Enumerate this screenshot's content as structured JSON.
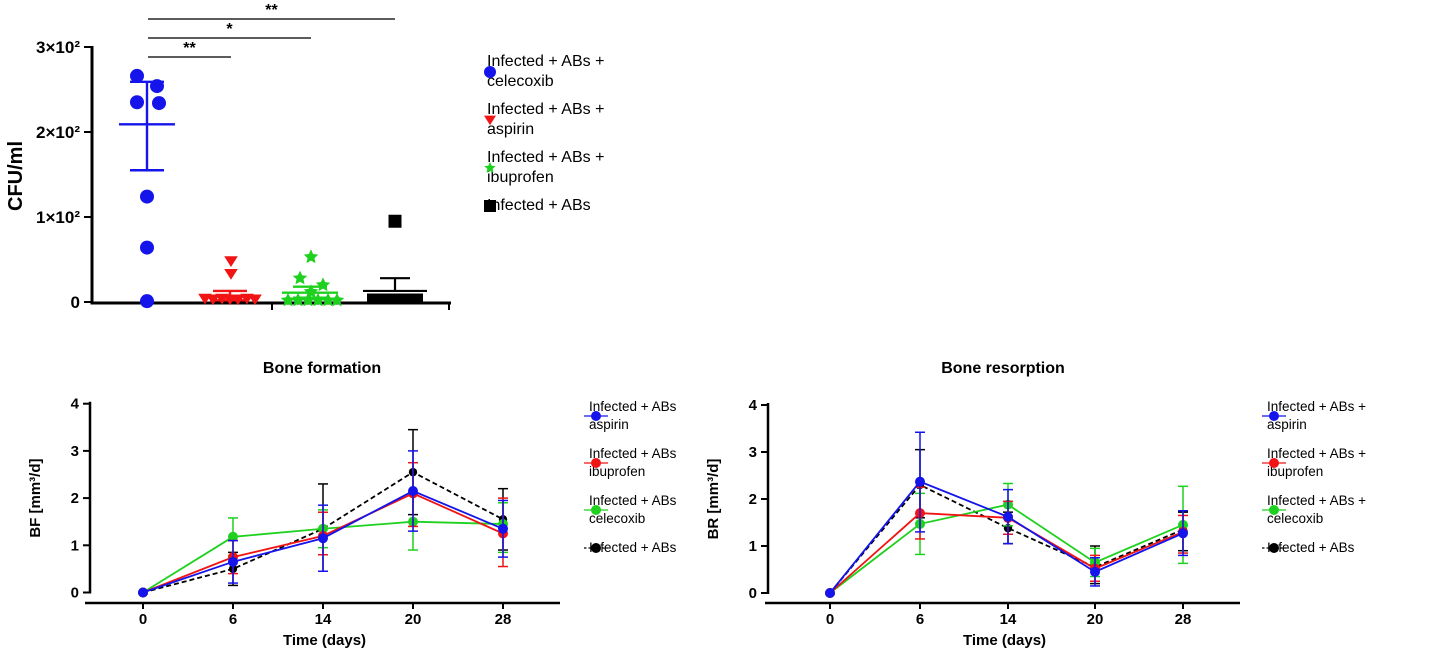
{
  "figure": {
    "background": "#ffffff"
  },
  "colors": {
    "blue": "#1414eb",
    "red": "#f01414",
    "green": "#1fd11f",
    "black": "#000000",
    "sig_line": "#454545"
  },
  "chart_data": [
    {
      "id": "cfu",
      "type": "scatter",
      "ylabel": "CFU/ml",
      "ylim": [
        0,
        300
      ],
      "yticks": [
        0,
        100,
        200,
        300
      ],
      "ytick_labels": [
        "0",
        "1×10²",
        "2×10²",
        "3×10²"
      ],
      "groups": [
        {
          "name": "Infected + ABs + celecoxib",
          "legend_lines": [
            "Infected + ABs +",
            "celecoxib"
          ],
          "color": "#1414eb",
          "marker": "circle",
          "style": "scatter",
          "points": [
            [
              -11,
              266
            ],
            [
              9,
              254
            ],
            [
              -11,
              235
            ],
            [
              11,
              234
            ],
            [
              -1,
              124
            ],
            [
              -1,
              64
            ],
            [
              -1,
              1
            ]
          ],
          "mean": 209,
          "err_low": 155,
          "err_high": 259
        },
        {
          "name": "Infected + ABs + aspirin",
          "legend_lines": [
            "Infected + ABs +",
            "aspirin"
          ],
          "color": "#f01414",
          "marker": "triangle-down",
          "style": "scatter",
          "points": [
            [
              0,
              48
            ],
            [
              0,
              33
            ],
            [
              -26,
              4
            ],
            [
              -18,
              3
            ],
            [
              -9,
              4
            ],
            [
              -1,
              3
            ],
            [
              7,
              3
            ],
            [
              16,
              4
            ],
            [
              24,
              3
            ]
          ],
          "mean": 7,
          "err_low": 2,
          "err_high": 13
        },
        {
          "name": "Infected + ABs + ibuprofen",
          "legend_lines": [
            "Infected + ABs +",
            "ibuprofen"
          ],
          "color": "#1fd11f",
          "marker": "star",
          "style": "scatter",
          "points": [
            [
              0,
              53
            ],
            [
              -11,
              28
            ],
            [
              12,
              20
            ],
            [
              0,
              12
            ],
            [
              -23,
              2
            ],
            [
              -13,
              2
            ],
            [
              -3,
              2
            ],
            [
              7,
              2
            ],
            [
              17,
              2
            ],
            [
              26,
              2
            ]
          ],
          "mean": 11,
          "err_low": 5,
          "err_high": 18
        },
        {
          "name": "Infected + ABs",
          "legend_lines": [
            "Infected + ABs"
          ],
          "color": "#000000",
          "marker": "square",
          "style": "bar",
          "points": [
            [
              0,
              95
            ]
          ],
          "bar_top": 10,
          "mean": 13,
          "err_high": 28
        }
      ],
      "significance": [
        {
          "label": "**",
          "from": 0,
          "to": 3
        },
        {
          "label": "*",
          "from": 0,
          "to": 2
        },
        {
          "label": "**",
          "from": 0,
          "to": 1
        }
      ]
    },
    {
      "id": "bf",
      "type": "line",
      "title": "Bone formation",
      "ylabel": "BF [mm³/d]",
      "xlabel": "Time (days)",
      "x_labels": [
        "0",
        "6",
        "14",
        "20",
        "28"
      ],
      "ylim": [
        0,
        4
      ],
      "yticks": [
        0,
        1,
        2,
        3,
        4
      ],
      "grid": false,
      "legend_position": "right",
      "series": [
        {
          "name": "Infected + ABs aspirin",
          "legend_lines": [
            "Infected + ABs",
            "aspirin"
          ],
          "color": "#1414eb",
          "dash": false,
          "values": [
            0,
            0.65,
            1.15,
            2.15,
            1.35
          ],
          "err_low": [
            0,
            0.2,
            0.45,
            1.3,
            0.75
          ],
          "err_high": [
            0,
            1.1,
            1.85,
            3.0,
            1.95
          ]
        },
        {
          "name": "Infected + ABs ibuprofen",
          "legend_lines": [
            "Infected + ABs",
            "ibuprofen"
          ],
          "color": "#f01414",
          "dash": false,
          "values": [
            0,
            0.75,
            1.2,
            2.1,
            1.25
          ],
          "err_low": [
            0,
            0.4,
            0.8,
            1.4,
            0.55
          ],
          "err_high": [
            0,
            1.1,
            1.7,
            2.75,
            2.0
          ]
        },
        {
          "name": "Infected + ABs celecoxib",
          "legend_lines": [
            "Infected + ABs",
            "celecoxib"
          ],
          "color": "#1fd11f",
          "dash": false,
          "values": [
            0,
            1.18,
            1.35,
            1.5,
            1.45
          ],
          "err_low": [
            0,
            0.78,
            0.95,
            0.9,
            0.85
          ],
          "err_high": [
            0,
            1.58,
            1.75,
            2.1,
            1.9
          ]
        },
        {
          "name": "Infected + ABs",
          "legend_lines": [
            "Infected + ABs"
          ],
          "color": "#000000",
          "dash": true,
          "values": [
            0,
            0.5,
            1.35,
            2.55,
            1.55
          ],
          "err_low": [
            0,
            0.15,
            0.45,
            1.65,
            0.9
          ],
          "err_high": [
            0,
            0.85,
            2.3,
            3.45,
            2.2
          ]
        }
      ]
    },
    {
      "id": "br",
      "type": "line",
      "title": "Bone resorption",
      "ylabel": "BR [mm³/d]",
      "xlabel": "Time (days)",
      "x_labels": [
        "0",
        "6",
        "14",
        "20",
        "28"
      ],
      "ylim": [
        0,
        4
      ],
      "yticks": [
        0,
        1,
        2,
        3,
        4
      ],
      "grid": false,
      "legend_position": "right",
      "series": [
        {
          "name": "Infected + ABs + aspirin",
          "legend_lines": [
            "Infected + ABs +",
            "aspirin"
          ],
          "color": "#1414eb",
          "dash": false,
          "values": [
            0,
            2.37,
            1.62,
            0.45,
            1.27
          ],
          "err_low": [
            0,
            1.3,
            1.05,
            0.15,
            0.8
          ],
          "err_high": [
            0,
            3.42,
            2.2,
            0.75,
            1.75
          ]
        },
        {
          "name": "Infected + ABs + ibuprofen",
          "legend_lines": [
            "Infected + ABs +",
            "ibuprofen"
          ],
          "color": "#f01414",
          "dash": false,
          "values": [
            0,
            1.7,
            1.6,
            0.52,
            1.3
          ],
          "err_low": [
            0,
            1.15,
            1.25,
            0.25,
            0.85
          ],
          "err_high": [
            0,
            2.25,
            1.95,
            0.8,
            1.65
          ]
        },
        {
          "name": "Infected + ABs + celecoxib",
          "legend_lines": [
            "Infected + ABs +",
            "celecoxib"
          ],
          "color": "#1fd11f",
          "dash": false,
          "values": [
            0,
            1.47,
            1.88,
            0.65,
            1.45
          ],
          "err_low": [
            0,
            0.82,
            1.43,
            0.35,
            0.63
          ],
          "err_high": [
            0,
            2.12,
            2.33,
            0.95,
            2.27
          ]
        },
        {
          "name": "Infected + ABs",
          "legend_lines": [
            "Infected + ABs"
          ],
          "color": "#000000",
          "dash": true,
          "values": [
            0,
            2.3,
            1.38,
            0.55,
            1.35
          ],
          "err_low": [
            0,
            1.6,
            1.05,
            0.2,
            0.9
          ],
          "err_high": [
            0,
            3.05,
            1.72,
            1.0,
            1.72
          ]
        }
      ]
    }
  ]
}
